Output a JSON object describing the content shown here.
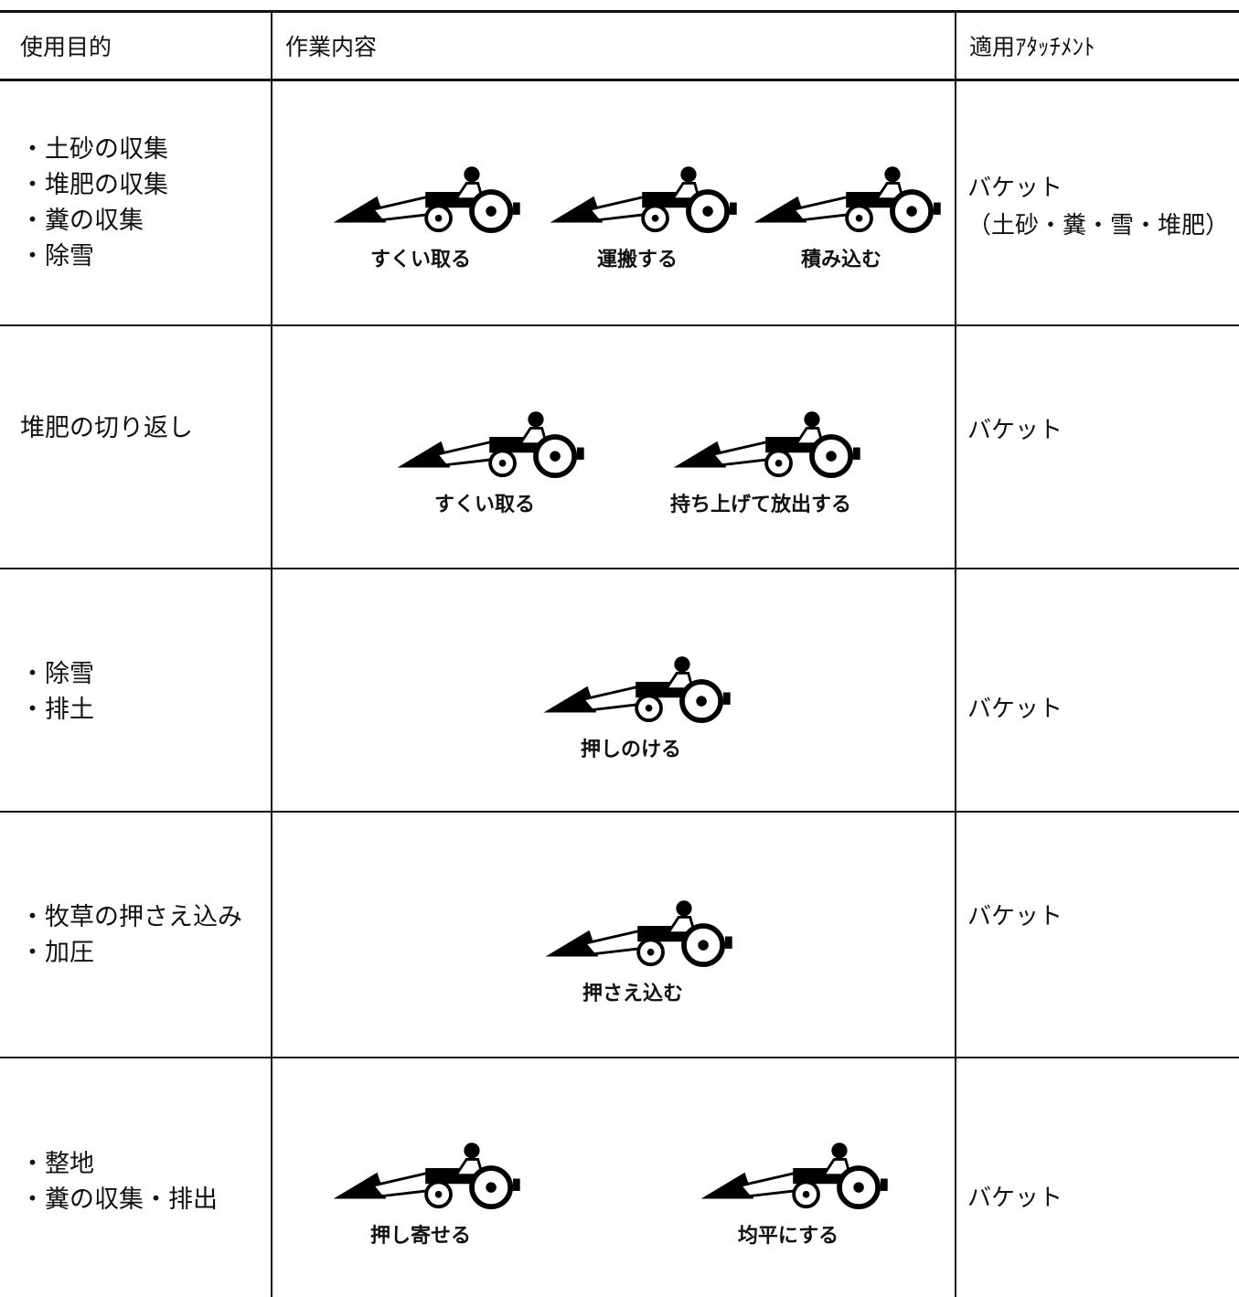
{
  "header": {
    "columns": [
      "使用目的",
      "作業内容",
      "適用ｱﾀｯﾁﾒﾝﾄ"
    ]
  },
  "rows": [
    {
      "purposes": [
        "・土砂の収集",
        "・堆肥の収集",
        "・糞の収集",
        "・除雪"
      ],
      "captions": [
        "すくい取る",
        "運搬する",
        "積み込む"
      ],
      "attachment": [
        "バケット",
        "（土砂・糞・雪・堆肥）"
      ]
    },
    {
      "purposes": [
        "堆肥の切り返し"
      ],
      "captions": [
        "すくい取る",
        "持ち上げて放出する"
      ],
      "attachment": [
        "バケット"
      ]
    },
    {
      "purposes": [
        "・除雪",
        "・排土"
      ],
      "captions": [
        "押しのける"
      ],
      "attachment": [
        "バケット"
      ]
    },
    {
      "purposes": [
        "・牧草の押さえ込み",
        "・加圧"
      ],
      "captions": [
        "押さえ込む"
      ],
      "attachment": [
        "バケット"
      ]
    },
    {
      "purposes": [
        "・整地",
        "・糞の収集・排出"
      ],
      "captions": [
        "押し寄せる",
        "均平にする"
      ],
      "attachment": [
        "バケット"
      ]
    }
  ]
}
